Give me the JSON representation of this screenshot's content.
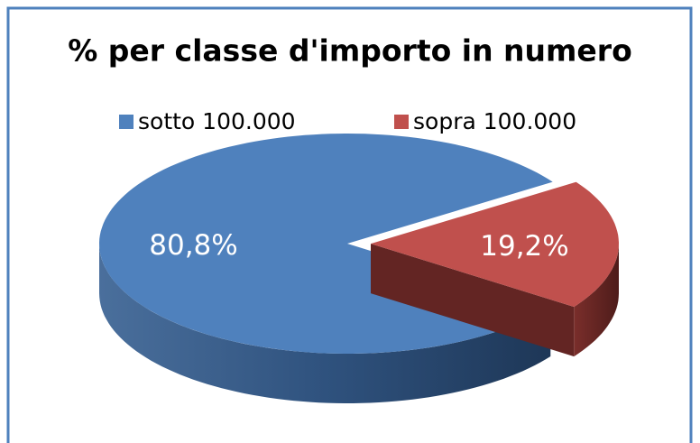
{
  "chart_data": {
    "type": "pie",
    "title": "% per classe d'importo in numero",
    "categories": [
      "sotto 100.000",
      "sopra 100.000"
    ],
    "values": [
      80.8,
      19.2
    ],
    "value_labels": [
      "80,8%",
      "19,2%"
    ],
    "colors": [
      "#4f81bd",
      "#c0504d"
    ],
    "side_colors": [
      "#2b4c74",
      "#632523"
    ],
    "legend": "top"
  }
}
